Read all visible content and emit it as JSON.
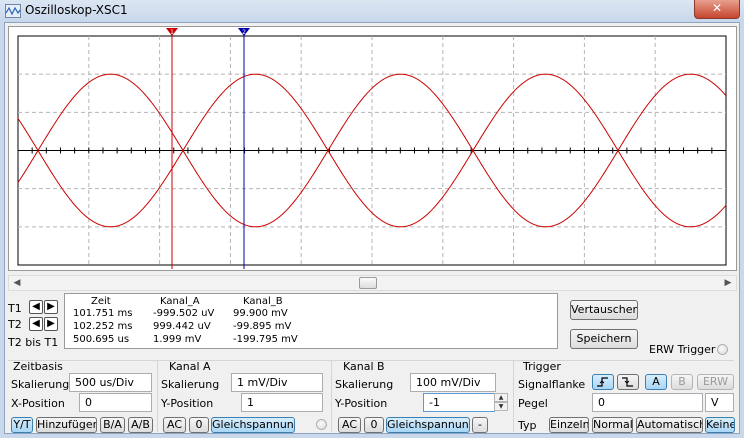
{
  "window": {
    "title": "Oszilloskop-XSC1",
    "close_glyph": "✕"
  },
  "scope": {
    "trace_color": "#cc0000",
    "cursor1_color": "#cc0000",
    "cursor2_color": "#0000aa",
    "cursor1_number": "1",
    "cursor2_number": "2"
  },
  "cursors": {
    "rows": [
      {
        "name": "T1"
      },
      {
        "name": "T2"
      },
      {
        "name": "T2 bis T1"
      }
    ]
  },
  "readout": {
    "headers": [
      "Zeit",
      "Kanal_A",
      "Kanal_B"
    ],
    "rows": [
      [
        "101.751 ms",
        "-999.502 uV",
        "99.900 mV"
      ],
      [
        "102.252 ms",
        "999.442 uV",
        "-99.895 mV"
      ],
      [
        "500.695 us",
        "1.999 mV",
        "-199.795 mV"
      ]
    ]
  },
  "actions": {
    "swap_label": "Vertauschen",
    "save_label": "Speichern",
    "ext_trigger_label": "ERW Trigger"
  },
  "zeitbasis": {
    "title": "Zeitbasis",
    "scale_label": "Skalierung",
    "scale_value": "500 us/Div",
    "xpos_label": "X-Position",
    "xpos_value": "0",
    "buttons": [
      "Y/T",
      "Hinzufügen",
      "B/A",
      "A/B"
    ]
  },
  "kanal_a": {
    "title": "Kanal A",
    "scale_label": "Skalierung",
    "scale_value": "1 mV/Div",
    "ypos_label": "Y-Position",
    "ypos_value": "1",
    "buttons": [
      "AC",
      "0",
      "Gleichspannung"
    ]
  },
  "kanal_b": {
    "title": "Kanal B",
    "scale_label": "Skalierung",
    "scale_value": "100 mV/Div",
    "ypos_label": "Y-Position",
    "ypos_value": "-1",
    "buttons": [
      "AC",
      "0",
      "Gleichspannung",
      "-"
    ]
  },
  "trigger": {
    "title": "Trigger",
    "edge_label": "Signalflanke",
    "source_buttons": [
      "A",
      "B",
      "ERW"
    ],
    "level_label": "Pegel",
    "level_value": "0",
    "level_unit": "V",
    "type_label": "Typ",
    "type_buttons": [
      "Einzeln",
      "Normal",
      "Automatisch",
      "Keine"
    ]
  }
}
